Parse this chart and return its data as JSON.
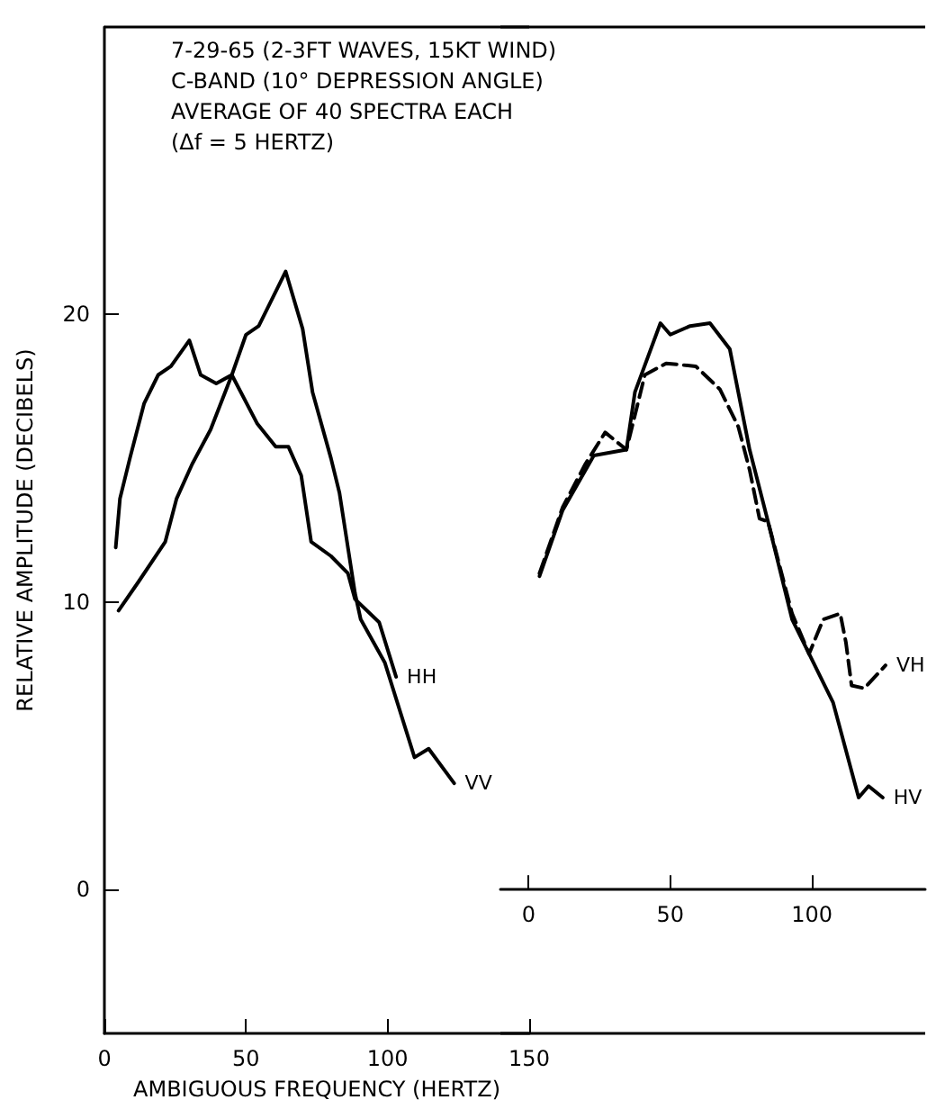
{
  "chart_data": [
    {
      "type": "line",
      "annotations": [
        "7-29-65 (2-3FT WAVES, 15KT WIND)",
        "C-BAND (10° DEPRESSION ANGLE)",
        "AVERAGE OF 40 SPECTRA EACH",
        "(Δf = 5 HERTZ)"
      ],
      "xlabel": "AMBIGUOUS FREQUENCY (HERTZ)",
      "ylabel": "RELATIVE AMPLITUDE (DECIBELS)",
      "xlim": [
        0,
        150
      ],
      "xticks": [
        0,
        50,
        100,
        150
      ],
      "ylim": [
        -5,
        30
      ],
      "yticks": [
        0,
        10,
        20
      ],
      "grid": false,
      "legend": false,
      "marker": "none",
      "line_style": "solid",
      "series": [
        {
          "name": "VV",
          "color": "#000000",
          "x": [
            5,
            12,
            21.5,
            25.5,
            31,
            37.5,
            45,
            50,
            54.5,
            64,
            70,
            73.5,
            80,
            83,
            88.5,
            90.5,
            99,
            109.5,
            114.5,
            123.5
          ],
          "values": [
            9.7,
            10.7,
            12.1,
            13.6,
            14.8,
            16,
            17.9,
            19.3,
            19.6,
            21.5,
            19.5,
            17.3,
            15,
            13.8,
            10.3,
            9.4,
            7.9,
            4.6,
            4.9,
            3.7
          ]
        },
        {
          "name": "HH",
          "color": "#000000",
          "x": [
            4,
            5.5,
            9,
            14,
            19,
            23.5,
            30,
            34,
            39.5,
            45,
            54,
            60.5,
            65,
            69.5,
            73,
            80,
            86,
            88.5,
            97,
            103
          ],
          "values": [
            11.9,
            13.6,
            15,
            16.9,
            17.9,
            18.2,
            19.1,
            17.9,
            17.6,
            17.9,
            16.2,
            15.4,
            15.4,
            14.4,
            12.1,
            11.6,
            11,
            10.1,
            9.3,
            7.4
          ]
        }
      ]
    },
    {
      "type": "line",
      "xlim": [
        -10,
        140
      ],
      "xticks": [
        0,
        50,
        100
      ],
      "ylim": [
        -5,
        30
      ],
      "tick_labels": "x",
      "grid": false,
      "legend": false,
      "marker": "none",
      "series": [
        {
          "name": "HV",
          "color": "#000000",
          "line_style": "solid",
          "x": [
            3.8,
            12,
            23,
            34.5,
            37.5,
            46.5,
            50,
            57,
            64,
            71,
            78,
            84.5,
            93,
            100.5,
            107.5,
            116.5,
            120,
            125
          ],
          "values": [
            10.9,
            13.2,
            15.1,
            15.3,
            17.3,
            19.7,
            19.3,
            19.6,
            19.7,
            18.8,
            15.3,
            12.8,
            9.4,
            7.9,
            6.5,
            3.2,
            3.6,
            3.2
          ]
        },
        {
          "name": "VH",
          "color": "#000000",
          "line_style": "dashed",
          "x": [
            3.8,
            12,
            20,
            27,
            34.5,
            41,
            48.5,
            59,
            67.5,
            74,
            78,
            81.5,
            84.5,
            93,
            99,
            104,
            110,
            112,
            114,
            118.5,
            126
          ],
          "values": [
            11,
            13.3,
            14.8,
            15.9,
            15.3,
            17.9,
            18.3,
            18.2,
            17.4,
            16.1,
            14.6,
            12.9,
            12.8,
            9.6,
            8.2,
            9.4,
            9.6,
            8.6,
            7.1,
            7,
            7.8
          ]
        }
      ]
    }
  ]
}
